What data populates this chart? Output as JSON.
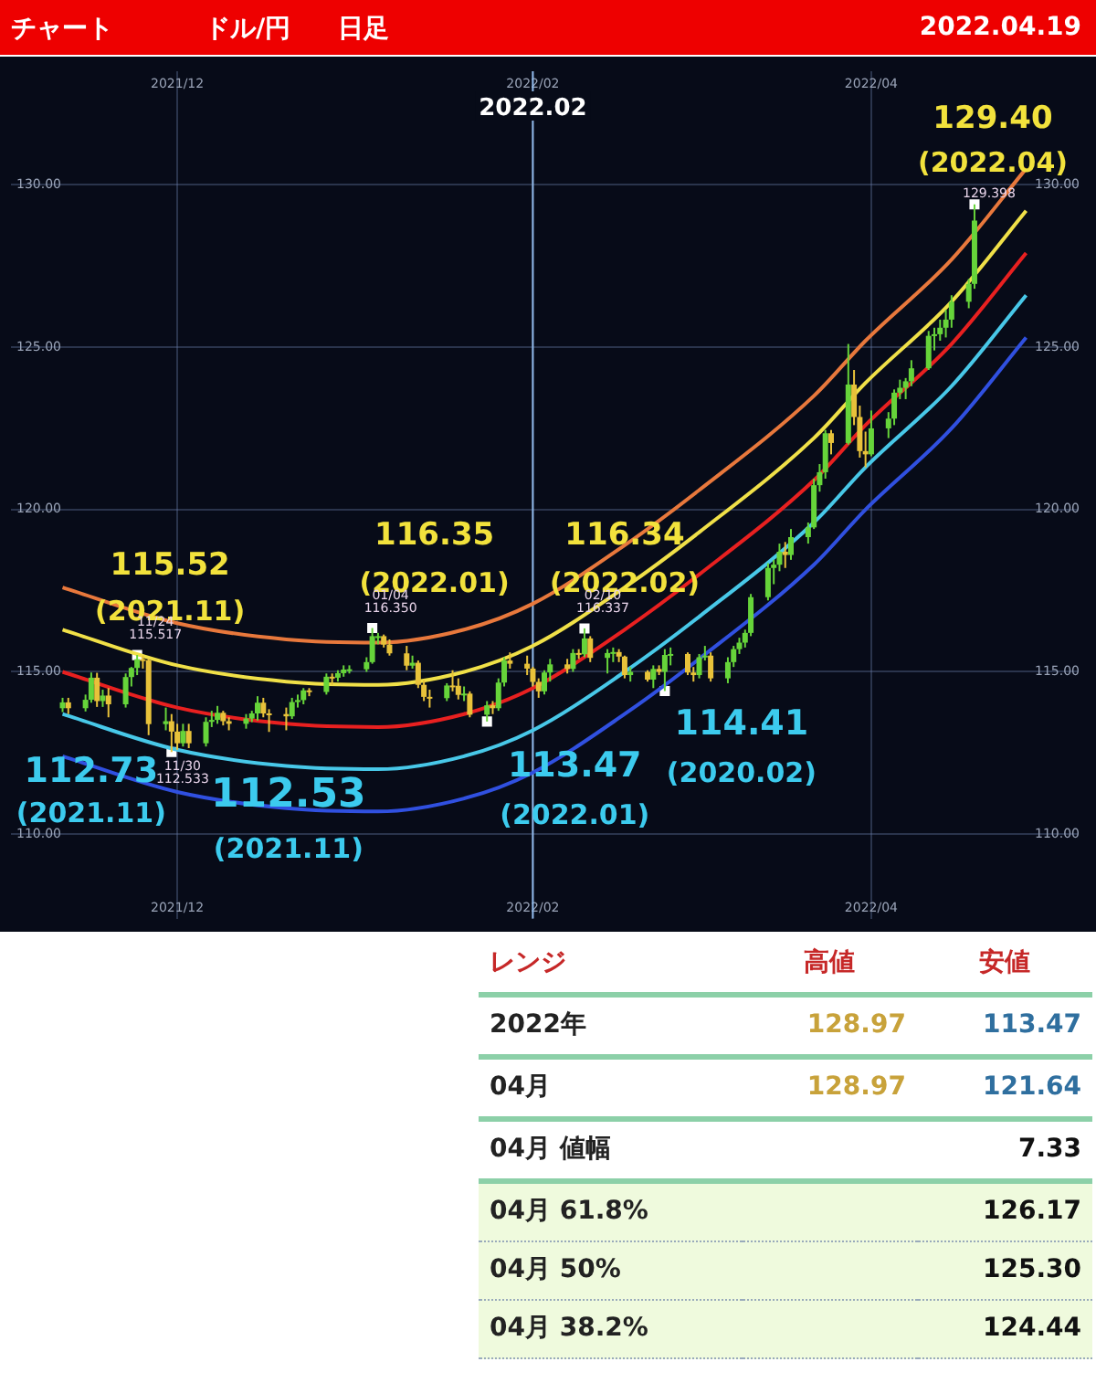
{
  "chart_data": [
    {
      "type": "candlestick",
      "title": "ドル/円",
      "subtitle": "日足",
      "x": [
        "2021-11-11",
        "2021-11-12",
        "2021-11-15",
        "2021-11-16",
        "2021-11-17",
        "2021-11-18",
        "2021-11-19",
        "2021-11-22",
        "2021-11-23",
        "2021-11-24",
        "2021-11-25",
        "2021-11-26",
        "2021-11-29",
        "2021-11-30",
        "2021-12-01",
        "2021-12-02",
        "2021-12-03",
        "2021-12-06",
        "2021-12-07",
        "2021-12-08",
        "2021-12-09",
        "2021-12-10",
        "2021-12-13",
        "2021-12-14",
        "2021-12-15",
        "2021-12-16",
        "2021-12-17",
        "2021-12-20",
        "2021-12-21",
        "2021-12-22",
        "2021-12-23",
        "2021-12-24",
        "2021-12-27",
        "2021-12-28",
        "2021-12-29",
        "2021-12-30",
        "2021-12-31",
        "2022-01-03",
        "2022-01-04",
        "2022-01-05",
        "2022-01-06",
        "2022-01-07",
        "2022-01-10",
        "2022-01-11",
        "2022-01-12",
        "2022-01-13",
        "2022-01-14",
        "2022-01-17",
        "2022-01-18",
        "2022-01-19",
        "2022-01-20",
        "2022-01-21",
        "2022-01-24",
        "2022-01-25",
        "2022-01-26",
        "2022-01-27",
        "2022-01-28",
        "2022-01-31",
        "2022-02-01",
        "2022-02-02",
        "2022-02-03",
        "2022-02-04",
        "2022-02-07",
        "2022-02-08",
        "2022-02-09",
        "2022-02-10",
        "2022-02-11",
        "2022-02-14",
        "2022-02-15",
        "2022-02-16",
        "2022-02-17",
        "2022-02-18",
        "2022-02-21",
        "2022-02-22",
        "2022-02-23",
        "2022-02-24",
        "2022-02-25",
        "2022-02-28",
        "2022-03-01",
        "2022-03-02",
        "2022-03-03",
        "2022-03-04",
        "2022-03-07",
        "2022-03-08",
        "2022-03-09",
        "2022-03-10",
        "2022-03-11",
        "2022-03-14",
        "2022-03-15",
        "2022-03-16",
        "2022-03-17",
        "2022-03-18",
        "2022-03-21",
        "2022-03-22",
        "2022-03-23",
        "2022-03-24",
        "2022-03-25",
        "2022-03-28",
        "2022-03-29",
        "2022-03-30",
        "2022-03-31",
        "2022-04-01",
        "2022-04-04",
        "2022-04-05",
        "2022-04-06",
        "2022-04-07",
        "2022-04-08",
        "2022-04-11",
        "2022-04-12",
        "2022-04-13",
        "2022-04-14",
        "2022-04-15",
        "2022-04-18",
        "2022-04-19"
      ],
      "ohlc": [
        [
          113.88,
          114.2,
          113.76,
          114.06
        ],
        [
          114.06,
          114.2,
          113.7,
          113.88
        ],
        [
          113.88,
          114.3,
          113.78,
          114.14
        ],
        [
          114.14,
          114.98,
          114.05,
          114.82
        ],
        [
          114.82,
          114.97,
          113.92,
          114.1
        ],
        [
          114.1,
          114.45,
          113.92,
          114.27
        ],
        [
          114.27,
          114.5,
          113.6,
          114.0
        ],
        [
          114.0,
          114.95,
          113.9,
          114.84
        ],
        [
          114.84,
          115.15,
          114.55,
          115.12
        ],
        [
          115.12,
          115.52,
          114.9,
          115.39
        ],
        [
          115.39,
          115.5,
          115.1,
          115.36
        ],
        [
          115.36,
          115.4,
          113.05,
          113.39
        ],
        [
          113.39,
          113.9,
          113.2,
          113.48
        ],
        [
          113.48,
          113.7,
          112.53,
          113.16
        ],
        [
          113.16,
          113.4,
          112.6,
          112.8
        ],
        [
          112.8,
          113.4,
          112.7,
          113.18
        ],
        [
          113.18,
          113.4,
          112.65,
          112.8
        ],
        [
          112.8,
          113.6,
          112.7,
          113.46
        ],
        [
          113.46,
          113.8,
          113.3,
          113.52
        ],
        [
          113.52,
          113.95,
          113.4,
          113.74
        ],
        [
          113.74,
          113.8,
          113.35,
          113.48
        ],
        [
          113.48,
          113.6,
          113.2,
          113.4
        ],
        [
          113.4,
          113.7,
          113.25,
          113.56
        ],
        [
          113.56,
          113.8,
          113.45,
          113.72
        ],
        [
          113.72,
          114.25,
          113.5,
          114.05
        ],
        [
          114.05,
          114.2,
          113.6,
          113.72
        ],
        [
          113.72,
          113.85,
          113.15,
          113.7
        ],
        [
          113.7,
          113.9,
          113.2,
          113.63
        ],
        [
          113.63,
          114.2,
          113.55,
          114.07
        ],
        [
          114.07,
          114.3,
          113.9,
          114.13
        ],
        [
          114.13,
          114.5,
          114.0,
          114.43
        ],
        [
          114.43,
          114.5,
          114.25,
          114.38
        ],
        [
          114.38,
          114.95,
          114.3,
          114.85
        ],
        [
          114.85,
          114.95,
          114.6,
          114.82
        ],
        [
          114.82,
          115.05,
          114.7,
          114.96
        ],
        [
          114.96,
          115.2,
          114.85,
          115.07
        ],
        [
          115.07,
          115.2,
          114.95,
          115.08
        ],
        [
          115.08,
          115.45,
          115.0,
          115.3
        ],
        [
          115.3,
          116.35,
          115.25,
          116.1
        ],
        [
          116.1,
          116.2,
          115.85,
          116.1
        ],
        [
          116.1,
          116.15,
          115.75,
          115.84
        ],
        [
          115.84,
          116.0,
          115.5,
          115.57
        ],
        [
          115.57,
          115.8,
          115.05,
          115.19
        ],
        [
          115.19,
          115.5,
          115.1,
          115.28
        ],
        [
          115.28,
          115.35,
          114.5,
          114.6
        ],
        [
          114.6,
          114.75,
          114.1,
          114.23
        ],
        [
          114.23,
          114.45,
          113.9,
          114.19
        ],
        [
          114.19,
          114.65,
          114.1,
          114.58
        ],
        [
          114.58,
          115.05,
          114.4,
          114.57
        ],
        [
          114.57,
          114.8,
          114.15,
          114.29
        ],
        [
          114.29,
          114.55,
          114.1,
          114.33
        ],
        [
          114.33,
          114.4,
          113.6,
          113.68
        ],
        [
          113.68,
          114.1,
          113.47,
          113.97
        ],
        [
          113.97,
          114.1,
          113.7,
          113.88
        ],
        [
          113.88,
          114.8,
          113.8,
          114.67
        ],
        [
          114.67,
          115.45,
          114.55,
          115.35
        ],
        [
          115.35,
          115.6,
          115.1,
          115.25
        ],
        [
          115.25,
          115.5,
          114.9,
          115.1
        ],
        [
          115.1,
          115.15,
          114.55,
          114.69
        ],
        [
          114.69,
          114.8,
          114.2,
          114.4
        ],
        [
          114.4,
          115.05,
          114.3,
          114.98
        ],
        [
          114.98,
          115.4,
          114.7,
          115.23
        ],
        [
          115.23,
          115.4,
          114.95,
          115.09
        ],
        [
          115.09,
          115.7,
          115.0,
          115.58
        ],
        [
          115.58,
          115.7,
          115.4,
          115.54
        ],
        [
          115.54,
          116.34,
          115.45,
          116.03
        ],
        [
          116.03,
          116.1,
          115.3,
          115.43
        ],
        [
          115.43,
          115.7,
          114.95,
          115.58
        ],
        [
          115.58,
          115.75,
          115.3,
          115.61
        ],
        [
          115.61,
          115.7,
          115.3,
          115.47
        ],
        [
          115.47,
          115.5,
          114.8,
          114.9
        ],
        [
          114.9,
          115.15,
          114.7,
          115.0
        ],
        [
          115.0,
          115.05,
          114.7,
          114.76
        ],
        [
          114.76,
          115.2,
          114.5,
          115.09
        ],
        [
          115.09,
          115.2,
          114.9,
          115.0
        ],
        [
          115.0,
          115.7,
          114.41,
          115.52
        ],
        [
          115.52,
          115.75,
          115.2,
          115.55
        ],
        [
          115.55,
          115.6,
          114.9,
          114.98
        ],
        [
          114.98,
          115.15,
          114.7,
          114.9
        ],
        [
          114.9,
          115.55,
          114.8,
          115.45
        ],
        [
          115.45,
          115.8,
          115.35,
          115.5
        ],
        [
          115.5,
          115.6,
          114.7,
          114.8
        ],
        [
          114.8,
          115.45,
          114.65,
          115.3
        ],
        [
          115.3,
          115.8,
          115.15,
          115.7
        ],
        [
          115.7,
          116.05,
          115.55,
          115.9
        ],
        [
          115.9,
          116.3,
          115.75,
          116.2
        ],
        [
          116.2,
          117.4,
          116.1,
          117.3
        ],
        [
          117.3,
          118.35,
          117.2,
          118.2
        ],
        [
          118.2,
          118.45,
          117.7,
          118.3
        ],
        [
          118.3,
          118.95,
          118.1,
          118.7
        ],
        [
          118.7,
          119.0,
          118.2,
          118.6
        ],
        [
          118.6,
          119.4,
          118.45,
          119.15
        ],
        [
          119.15,
          119.6,
          118.95,
          119.45
        ],
        [
          119.45,
          120.95,
          119.4,
          120.75
        ],
        [
          120.75,
          121.4,
          120.55,
          121.15
        ],
        [
          121.15,
          122.45,
          120.95,
          122.35
        ],
        [
          122.35,
          122.45,
          121.7,
          122.05
        ],
        [
          122.05,
          125.1,
          122.0,
          123.85
        ],
        [
          123.85,
          124.3,
          122.6,
          122.85
        ],
        [
          122.85,
          123.2,
          121.6,
          121.8
        ],
        [
          121.8,
          122.4,
          121.3,
          121.7
        ],
        [
          121.7,
          123.05,
          121.64,
          122.5
        ],
        [
          122.5,
          123.0,
          122.2,
          122.8
        ],
        [
          122.8,
          123.7,
          122.6,
          123.6
        ],
        [
          123.6,
          124.0,
          123.4,
          123.75
        ],
        [
          123.75,
          124.05,
          123.4,
          123.95
        ],
        [
          123.95,
          124.6,
          123.8,
          124.35
        ],
        [
          124.35,
          125.5,
          124.3,
          125.35
        ],
        [
          125.35,
          125.6,
          124.9,
          125.4
        ],
        [
          125.4,
          125.85,
          125.2,
          125.6
        ],
        [
          125.6,
          126.15,
          125.3,
          125.85
        ],
        [
          125.85,
          126.6,
          125.6,
          126.4
        ],
        [
          126.4,
          127.1,
          126.2,
          126.95
        ],
        [
          126.95,
          129.4,
          126.8,
          128.9
        ]
      ],
      "colors": [
        "#66d43a",
        "#e8c23a",
        "#66d43a",
        "#66d43a",
        "#e8c23a",
        "#66d43a",
        "#e8c23a",
        "#66d43a",
        "#66d43a",
        "#66d43a",
        "#e8c23a",
        "#e8c23a",
        "#66d43a",
        "#e8c23a",
        "#e8c23a",
        "#66d43a",
        "#e8c23a",
        "#66d43a",
        "#66d43a",
        "#66d43a",
        "#e8c23a",
        "#e8c23a",
        "#66d43a",
        "#66d43a",
        "#66d43a",
        "#e8c23a",
        "#e8c23a",
        "#e8c23a",
        "#66d43a",
        "#66d43a",
        "#66d43a",
        "#e8c23a",
        "#66d43a",
        "#e8c23a",
        "#66d43a",
        "#66d43a",
        "#66d43a",
        "#66d43a",
        "#66d43a",
        "#66d43a",
        "#e8c23a",
        "#e8c23a",
        "#e8c23a",
        "#66d43a",
        "#e8c23a",
        "#e8c23a",
        "#e8c23a",
        "#66d43a",
        "#e8c23a",
        "#e8c23a",
        "#66d43a",
        "#e8c23a",
        "#66d43a",
        "#e8c23a",
        "#66d43a",
        "#66d43a",
        "#e8c23a",
        "#e8c23a",
        "#e8c23a",
        "#e8c23a",
        "#66d43a",
        "#66d43a",
        "#e8c23a",
        "#66d43a",
        "#e8c23a",
        "#66d43a",
        "#e8c23a",
        "#66d43a",
        "#66d43a",
        "#e8c23a",
        "#e8c23a",
        "#66d43a",
        "#e8c23a",
        "#66d43a",
        "#e8c23a",
        "#66d43a",
        "#66d43a",
        "#e8c23a",
        "#e8c23a",
        "#66d43a",
        "#66d43a",
        "#e8c23a",
        "#66d43a",
        "#66d43a",
        "#66d43a",
        "#66d43a",
        "#66d43a",
        "#66d43a",
        "#66d43a",
        "#66d43a",
        "#e8c23a",
        "#66d43a",
        "#66d43a",
        "#66d43a",
        "#66d43a",
        "#66d43a",
        "#e8c23a",
        "#66d43a",
        "#e8c23a",
        "#e8c23a",
        "#e8c23a",
        "#66d43a",
        "#66d43a",
        "#66d43a",
        "#66d43a",
        "#66d43a",
        "#66d43a",
        "#66d43a",
        "#66d43a",
        "#66d43a",
        "#66d43a",
        "#66d43a",
        "#66d43a",
        "#66d43a"
      ],
      "series": [
        {
          "type": "line",
          "color": "#e8783c",
          "x": [
            "2021-11-11",
            "2021-12-01",
            "2021-12-20",
            "2022-01-05",
            "2022-01-20",
            "2022-02-01",
            "2022-02-17",
            "2022-03-02",
            "2022-03-22",
            "2022-03-31",
            "2022-04-15",
            "2022-04-28"
          ],
          "values": [
            117.6,
            116.5,
            116.0,
            115.9,
            116.3,
            117.1,
            118.9,
            120.6,
            123.5,
            125.2,
            127.7,
            130.5
          ]
        },
        {
          "type": "line",
          "color": "#f0e048",
          "x": [
            "2021-11-11",
            "2021-12-01",
            "2021-12-20",
            "2022-01-05",
            "2022-01-20",
            "2022-02-01",
            "2022-02-17",
            "2022-03-02",
            "2022-03-22",
            "2022-03-31",
            "2022-04-15",
            "2022-04-28"
          ],
          "values": [
            116.3,
            115.2,
            114.7,
            114.6,
            115.0,
            115.8,
            117.6,
            119.3,
            122.2,
            123.9,
            126.4,
            129.2
          ]
        },
        {
          "type": "line",
          "color": "#e82020",
          "x": [
            "2021-11-11",
            "2021-12-01",
            "2021-12-20",
            "2022-01-05",
            "2022-01-20",
            "2022-02-01",
            "2022-02-17",
            "2022-03-02",
            "2022-03-22",
            "2022-03-31",
            "2022-04-15",
            "2022-04-28"
          ],
          "values": [
            115.0,
            113.9,
            113.4,
            113.3,
            113.7,
            114.5,
            116.3,
            118.0,
            120.9,
            122.6,
            125.1,
            127.9
          ]
        },
        {
          "type": "line",
          "color": "#48c8e8",
          "x": [
            "2021-11-11",
            "2021-12-01",
            "2021-12-20",
            "2022-01-05",
            "2022-01-20",
            "2022-02-01",
            "2022-02-17",
            "2022-03-02",
            "2022-03-22",
            "2022-03-31",
            "2022-04-15",
            "2022-04-28"
          ],
          "values": [
            113.7,
            112.6,
            112.1,
            112.0,
            112.4,
            113.2,
            115.0,
            116.7,
            119.6,
            121.3,
            123.8,
            126.6
          ]
        },
        {
          "type": "line",
          "color": "#3050e0",
          "x": [
            "2021-11-11",
            "2021-12-01",
            "2021-12-20",
            "2022-01-05",
            "2022-01-20",
            "2022-02-01",
            "2022-02-17",
            "2022-03-02",
            "2022-03-22",
            "2022-03-31",
            "2022-04-15",
            "2022-04-28"
          ],
          "values": [
            112.4,
            111.3,
            110.8,
            110.7,
            111.1,
            111.9,
            113.7,
            115.4,
            118.3,
            120.0,
            122.5,
            125.3
          ]
        },
        {
          "type": "scatter",
          "color": "#ffffff",
          "marker": "square",
          "x": [
            "2021-11-24",
            "2021-11-30",
            "2022-01-04",
            "2022-01-24",
            "2022-02-10",
            "2022-02-24",
            "2022-04-19"
          ],
          "values": [
            115.517,
            112.533,
            116.35,
            113.47,
            116.337,
            114.41,
            129.398
          ]
        }
      ],
      "xlim": [
        "2021-11-02",
        "2022-05-07"
      ],
      "xticks": [
        {
          "value": "2021-12-01",
          "label": "2021/12"
        },
        {
          "value": "2022-02-01",
          "label": "2022/02"
        },
        {
          "value": "2022-04-01",
          "label": "2022/04"
        }
      ],
      "x2lim": [
        "2021-11-02",
        "2022-05-07"
      ],
      "x2ticks": [
        {
          "value": "2021-12-01",
          "label": "2021/12"
        },
        {
          "value": "2022-02-01",
          "label": "2022/02"
        },
        {
          "value": "2022-04-01",
          "label": "2022/04"
        }
      ],
      "ylim": [
        107.4,
        133.5
      ],
      "yticks": [
        {
          "value": 110,
          "label": "110.00"
        },
        {
          "value": 115,
          "label": "115.00"
        },
        {
          "value": 120,
          "label": "120.00"
        },
        {
          "value": 125,
          "label": "125.00"
        },
        {
          "value": 130,
          "label": "130.00"
        }
      ],
      "y2lim": [
        107.4,
        133.5
      ],
      "y2ticks": [
        {
          "value": 110,
          "label": "110.00"
        },
        {
          "value": 115,
          "label": "115.00"
        },
        {
          "value": 120,
          "label": "120.00"
        },
        {
          "value": 125,
          "label": "125.00"
        },
        {
          "value": 130,
          "label": "130.00"
        }
      ],
      "grid": true,
      "ref_lines": [
        {
          "axis": "x",
          "value": "2022-02-01",
          "label": "2022.02",
          "color": "#8fb8e8"
        }
      ],
      "annotations": [
        "チャート",
        "2022.04.19",
        {
          "text": "115.52\n(2021.11)",
          "x": "2021-11-24",
          "y": 115.52
        },
        {
          "text": "116.35\n(2022.01)",
          "x": "2022-01-04",
          "y": 116.35
        },
        {
          "text": "116.34\n(2022.02)",
          "x": "2022-02-10",
          "y": 116.34
        },
        {
          "text": "129.40\n(2022.04)",
          "x": "2022-04-19",
          "y": 129.4
        },
        {
          "text": "112.73\n(2021.11)",
          "x": "2021-11-30",
          "y": 112.73
        },
        {
          "text": "112.53\n(2021.11)",
          "x": "2021-11-30",
          "y": 112.53
        },
        {
          "text": "113.47\n(2022.01)",
          "x": "2022-01-24",
          "y": 113.47
        },
        {
          "text": "114.41\n(2020.02)",
          "x": "2022-02-24",
          "y": 114.41
        },
        {
          "text": "11/24\n115.517",
          "x": "2021-11-24",
          "y": 115.517
        },
        {
          "text": "11/30\n112.533",
          "x": "2021-11-30",
          "y": 112.533
        },
        {
          "text": "01/04\n116.350",
          "x": "2022-01-04",
          "y": 116.35
        },
        {
          "text": "02/10\n116.337",
          "x": "2022-02-10",
          "y": 116.337
        },
        {
          "text": "129.398",
          "x": "2022-04-19",
          "y": 129.398
        }
      ]
    },
    {
      "type": "other",
      "title": "レンジ",
      "categories": [
        "2022年",
        "04月",
        "04月 値幅",
        "04月  61.8%",
        "04月  50%",
        "04月  38.2%"
      ],
      "series": [
        {
          "name": "高値",
          "values": [
            128.97,
            128.97,
            null,
            null,
            null,
            null
          ],
          "value_labels": [
            "128.97",
            "128.97",
            null,
            null,
            null,
            null
          ]
        },
        {
          "name": "安値",
          "values": [
            113.47,
            121.64,
            7.33,
            126.17,
            125.3,
            124.44
          ],
          "value_labels": [
            "113.47",
            "121.64",
            "7.33",
            "126.17",
            "125.30",
            "124.44"
          ]
        }
      ]
    }
  ]
}
